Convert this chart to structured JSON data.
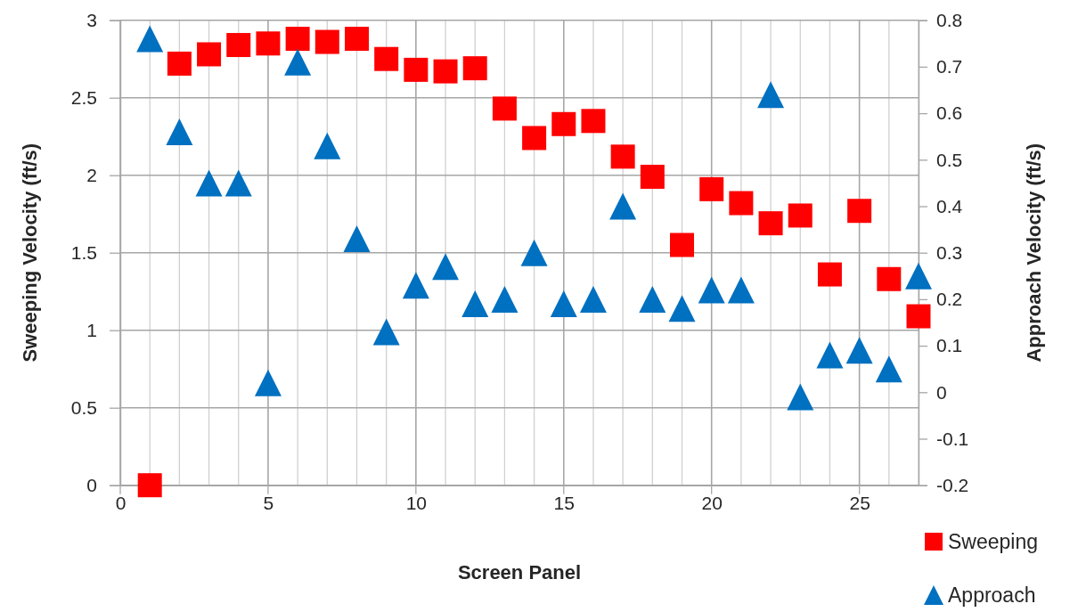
{
  "chart_data": {
    "type": "scatter",
    "x": [
      1,
      2,
      3,
      4,
      5,
      6,
      7,
      8,
      9,
      10,
      11,
      12,
      13,
      14,
      15,
      16,
      17,
      18,
      19,
      20,
      21,
      22,
      23,
      24,
      25,
      26,
      27
    ],
    "series": [
      {
        "name": "Sweeping",
        "color": "#ff0000",
        "marker": "square",
        "values": [
          0,
          2.72,
          2.78,
          2.84,
          2.85,
          2.88,
          2.86,
          2.88,
          2.75,
          2.68,
          2.67,
          2.69,
          2.43,
          2.24,
          2.33,
          2.35,
          2.12,
          1.99,
          1.55,
          1.91,
          1.82,
          1.69,
          1.74,
          1.36,
          1.77,
          1.33,
          1.09
        ]
      },
      {
        "name": "Approach",
        "color": "#0070c0",
        "marker": "triangle",
        "axis": "y2",
        "values": [
          0.76,
          0.56,
          0.45,
          0.45,
          0.02,
          0.71,
          0.53,
          0.33,
          0.13,
          0.23,
          0.27,
          0.19,
          0.2,
          0.3,
          0.19,
          0.2,
          0.4,
          0.2,
          0.18,
          0.22,
          0.22,
          0.64,
          -0.01,
          0.08,
          0.09,
          0.05,
          0.25
        ]
      }
    ],
    "xlabel": "Screen Panel",
    "ylabel": "Sweeping Velocity (ft/s)",
    "y2label": "Approach Velocity (ft/s)",
    "xlim": [
      0,
      27
    ],
    "xticks": [
      0,
      {
        "value": 1,
        "label": null
      },
      {
        "value": 2,
        "label": null
      },
      {
        "value": 3,
        "label": null
      },
      {
        "value": 4,
        "label": null
      },
      5,
      {
        "value": 6,
        "label": null
      },
      {
        "value": 7,
        "label": null
      },
      {
        "value": 8,
        "label": null
      },
      {
        "value": 9,
        "label": null
      },
      10,
      {
        "value": 11,
        "label": null
      },
      {
        "value": 12,
        "label": null
      },
      {
        "value": 13,
        "label": null
      },
      {
        "value": 14,
        "label": null
      },
      15,
      {
        "value": 16,
        "label": null
      },
      {
        "value": 17,
        "label": null
      },
      {
        "value": 18,
        "label": null
      },
      {
        "value": 19,
        "label": null
      },
      20,
      {
        "value": 21,
        "label": null
      },
      {
        "value": 22,
        "label": null
      },
      {
        "value": 23,
        "label": null
      },
      {
        "value": 24,
        "label": null
      },
      25,
      {
        "value": 26,
        "label": null
      },
      {
        "value": 27,
        "label": null
      }
    ],
    "ylim": [
      0,
      3
    ],
    "yticks": [
      0,
      0.5,
      1,
      1.5,
      2,
      2.5,
      3
    ],
    "y2lim": [
      -0.2,
      0.8
    ],
    "y2ticks": [
      -0.2,
      -0.1,
      0,
      0.1,
      0.2,
      0.3,
      0.4,
      0.5,
      0.6,
      0.7,
      0.8
    ],
    "grid": true,
    "legend": "bottom right"
  }
}
